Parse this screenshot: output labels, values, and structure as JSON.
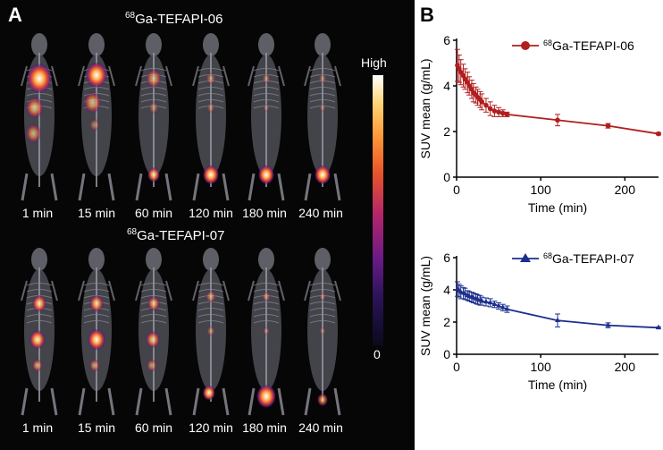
{
  "panel_a": {
    "letter": "A",
    "tracers": [
      {
        "iso": "68",
        "name": "Ga-TEFAPI-06"
      },
      {
        "iso": "68",
        "name": "Ga-TEFAPI-07"
      }
    ],
    "times": [
      "1 min",
      "15 min",
      "60 min",
      "120 min",
      "180 min",
      "240 min"
    ],
    "colorbar": {
      "high": "High",
      "low": "0"
    },
    "colors": {
      "background": "#060606",
      "hot": "#ffffff",
      "mid": "#ff8a3a",
      "low": "#7a1f8a"
    }
  },
  "panel_b": {
    "letter": "B"
  },
  "chart_data": [
    {
      "type": "line",
      "legend": {
        "iso": "68",
        "name": "Ga-TEFAPI-06",
        "marker": "circle",
        "position": "top-right"
      },
      "color": "#b01e1e",
      "xlabel": "Time (min)",
      "ylabel": "SUV mean (g/mL)",
      "xlim": [
        0,
        240
      ],
      "ylim": [
        0,
        6
      ],
      "xticks": [
        0,
        100,
        200
      ],
      "yticks": [
        0,
        2,
        4,
        6
      ],
      "x": [
        1,
        3,
        5,
        8,
        10,
        13,
        15,
        18,
        20,
        23,
        25,
        28,
        30,
        35,
        40,
        45,
        50,
        55,
        60,
        120,
        180,
        240
      ],
      "y": [
        4.9,
        4.75,
        4.6,
        4.45,
        4.3,
        4.15,
        4.0,
        3.85,
        3.7,
        3.6,
        3.5,
        3.4,
        3.3,
        3.15,
        3.0,
        2.9,
        2.85,
        2.8,
        2.75,
        2.5,
        2.25,
        1.9
      ],
      "err": [
        0.7,
        0.6,
        0.55,
        0.5,
        0.45,
        0.45,
        0.4,
        0.4,
        0.4,
        0.35,
        0.35,
        0.35,
        0.35,
        0.3,
        0.3,
        0.25,
        0.2,
        0.15,
        0.1,
        0.25,
        0.1,
        0.05
      ]
    },
    {
      "type": "line",
      "legend": {
        "iso": "68",
        "name": "Ga-TEFAPI-07",
        "marker": "triangle",
        "position": "top-right"
      },
      "color": "#1c2f8e",
      "xlabel": "Time (min)",
      "ylabel": "SUV mean (g/mL)",
      "xlim": [
        0,
        240
      ],
      "ylim": [
        0,
        6
      ],
      "xticks": [
        0,
        100,
        200
      ],
      "yticks": [
        0,
        2,
        4,
        6
      ],
      "x": [
        1,
        3,
        5,
        8,
        10,
        13,
        15,
        18,
        20,
        23,
        25,
        28,
        30,
        35,
        40,
        45,
        50,
        55,
        60,
        120,
        180,
        240
      ],
      "y": [
        4.05,
        3.95,
        3.85,
        3.8,
        3.75,
        3.65,
        3.6,
        3.55,
        3.5,
        3.45,
        3.4,
        3.35,
        3.3,
        3.25,
        3.2,
        3.1,
        3.0,
        2.9,
        2.8,
        2.1,
        1.8,
        1.65
      ],
      "err": [
        0.45,
        0.4,
        0.4,
        0.35,
        0.35,
        0.3,
        0.3,
        0.3,
        0.3,
        0.3,
        0.3,
        0.3,
        0.25,
        0.25,
        0.25,
        0.2,
        0.2,
        0.2,
        0.2,
        0.4,
        0.15,
        0.05
      ]
    }
  ]
}
